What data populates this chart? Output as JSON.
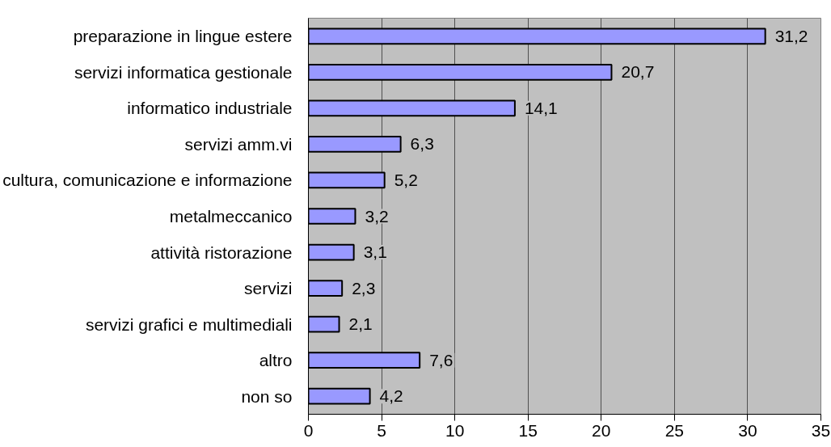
{
  "chart_data": {
    "type": "bar",
    "orientation": "horizontal",
    "categories": [
      "preparazione in lingue estere",
      "servizi informatica gestionale",
      "informatico industriale",
      "servizi amm.vi",
      "cultura, comunicazione e informazione",
      "metalmeccanico",
      "attività ristorazione",
      "servizi",
      "servizi grafici e multimediali",
      "altro",
      "non so"
    ],
    "values": [
      31.2,
      20.7,
      14.1,
      6.3,
      5.2,
      3.2,
      3.1,
      2.3,
      2.1,
      7.6,
      4.2
    ],
    "value_labels": [
      "31,2",
      "20,7",
      "14,1",
      "6,3",
      "5,2",
      "3,2",
      "3,1",
      "2,3",
      "2,1",
      "7,6",
      "4,2"
    ],
    "color": "#9999ff",
    "xlim": [
      0,
      35
    ],
    "xticks": [
      0,
      5,
      10,
      15,
      20,
      25,
      30,
      35
    ],
    "grid": "x"
  }
}
